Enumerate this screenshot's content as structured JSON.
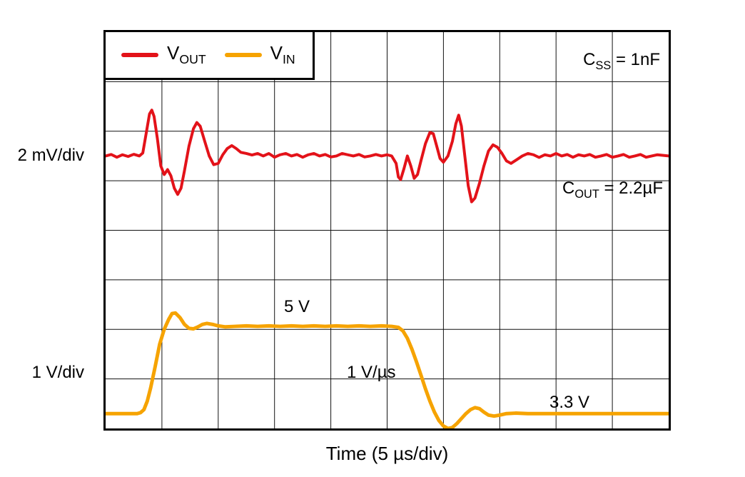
{
  "figure": {
    "y_axis_label_top": "2 mV/div",
    "y_axis_label_bottom": "1 V/div",
    "x_axis_label": "Time (5 µs/div)"
  },
  "legend": {
    "items": [
      {
        "id": "vout",
        "main": "V",
        "sub": "OUT"
      },
      {
        "id": "vin",
        "main": "V",
        "sub": "IN"
      }
    ]
  },
  "annotations": {
    "css": {
      "main": "C",
      "sub": "SS",
      "rest": " = 1nF"
    },
    "cout": {
      "main": "C",
      "sub": "OUT",
      "rest": " = 2.2µF"
    },
    "vin_high": "5 V",
    "slew_rate": "1 V/µs",
    "vin_low": "3.3 V"
  },
  "chart_data": {
    "type": "line",
    "title": "",
    "xlabel": "Time (5 µs/div)",
    "ylabel": "",
    "x_units": "µs",
    "xlim": [
      0,
      50
    ],
    "grid": {
      "x_divisions": 10,
      "y_divisions": 8,
      "line_color": "#111111",
      "line_width": 1
    },
    "legend_position": "top-left",
    "series": [
      {
        "id": "vin",
        "name": "V_IN",
        "units": "V",
        "units_per_div": 1,
        "scale_label": "1 V/div",
        "baseline_value": 3.3,
        "baseline_div": 0.3,
        "color": "#f6a300",
        "stroke_width": 5,
        "points": [
          [
            0,
            3.3
          ],
          [
            1.0,
            3.3
          ],
          [
            2.0,
            3.3
          ],
          [
            2.8,
            3.3
          ],
          [
            3.1,
            3.32
          ],
          [
            3.4,
            3.38
          ],
          [
            3.7,
            3.55
          ],
          [
            4.0,
            3.82
          ],
          [
            4.4,
            4.25
          ],
          [
            4.8,
            4.7
          ],
          [
            5.2,
            5.0
          ],
          [
            5.6,
            5.2
          ],
          [
            5.9,
            5.32
          ],
          [
            6.2,
            5.33
          ],
          [
            6.6,
            5.24
          ],
          [
            7.0,
            5.1
          ],
          [
            7.4,
            5.02
          ],
          [
            7.8,
            5.01
          ],
          [
            8.2,
            5.05
          ],
          [
            8.6,
            5.1
          ],
          [
            9.0,
            5.12
          ],
          [
            9.5,
            5.1
          ],
          [
            10.0,
            5.07
          ],
          [
            10.6,
            5.05
          ],
          [
            11.5,
            5.06
          ],
          [
            12.5,
            5.07
          ],
          [
            13.5,
            5.06
          ],
          [
            14.5,
            5.07
          ],
          [
            15.5,
            5.06
          ],
          [
            16.5,
            5.07
          ],
          [
            17.5,
            5.06
          ],
          [
            18.5,
            5.07
          ],
          [
            19.5,
            5.06
          ],
          [
            20.5,
            5.07
          ],
          [
            21.5,
            5.06
          ],
          [
            22.5,
            5.07
          ],
          [
            23.5,
            5.06
          ],
          [
            24.5,
            5.07
          ],
          [
            25.4,
            5.06
          ],
          [
            26.0,
            5.04
          ],
          [
            26.4,
            4.97
          ],
          [
            26.8,
            4.82
          ],
          [
            27.2,
            4.6
          ],
          [
            27.6,
            4.35
          ],
          [
            28.0,
            4.08
          ],
          [
            28.4,
            3.8
          ],
          [
            28.8,
            3.55
          ],
          [
            29.2,
            3.33
          ],
          [
            29.6,
            3.16
          ],
          [
            30.0,
            3.05
          ],
          [
            30.4,
            3.0
          ],
          [
            30.8,
            3.02
          ],
          [
            31.2,
            3.1
          ],
          [
            31.6,
            3.2
          ],
          [
            32.0,
            3.3
          ],
          [
            32.4,
            3.38
          ],
          [
            32.8,
            3.42
          ],
          [
            33.2,
            3.4
          ],
          [
            33.6,
            3.33
          ],
          [
            34.0,
            3.27
          ],
          [
            34.5,
            3.25
          ],
          [
            35.0,
            3.27
          ],
          [
            35.6,
            3.3
          ],
          [
            36.4,
            3.31
          ],
          [
            37.5,
            3.3
          ],
          [
            39.0,
            3.3
          ],
          [
            41.0,
            3.3
          ],
          [
            43.0,
            3.3
          ],
          [
            45.0,
            3.3
          ],
          [
            47.0,
            3.3
          ],
          [
            49.0,
            3.3
          ],
          [
            50,
            3.3
          ]
        ]
      },
      {
        "id": "vout",
        "name": "V_OUT",
        "units": "mV (AC-coupled deviation)",
        "units_per_div": 2,
        "scale_label": "2 mV/div",
        "baseline_value": 0,
        "baseline_div": 5.5,
        "color": "#e31219",
        "stroke_width": 4,
        "points": [
          [
            0,
            0.0
          ],
          [
            0.5,
            0.06
          ],
          [
            1.0,
            -0.05
          ],
          [
            1.5,
            0.05
          ],
          [
            2.0,
            -0.02
          ],
          [
            2.5,
            0.07
          ],
          [
            3.0,
            0.0
          ],
          [
            3.3,
            0.12
          ],
          [
            3.6,
            0.9
          ],
          [
            3.9,
            1.7
          ],
          [
            4.1,
            1.85
          ],
          [
            4.3,
            1.6
          ],
          [
            4.6,
            0.7
          ],
          [
            4.9,
            -0.4
          ],
          [
            5.2,
            -0.75
          ],
          [
            5.5,
            -0.55
          ],
          [
            5.8,
            -0.8
          ],
          [
            6.1,
            -1.3
          ],
          [
            6.4,
            -1.55
          ],
          [
            6.7,
            -1.3
          ],
          [
            7.0,
            -0.6
          ],
          [
            7.4,
            0.4
          ],
          [
            7.8,
            1.1
          ],
          [
            8.1,
            1.35
          ],
          [
            8.4,
            1.2
          ],
          [
            8.8,
            0.6
          ],
          [
            9.2,
            0.0
          ],
          [
            9.6,
            -0.35
          ],
          [
            10.0,
            -0.3
          ],
          [
            10.4,
            0.05
          ],
          [
            10.8,
            0.3
          ],
          [
            11.2,
            0.42
          ],
          [
            11.6,
            0.3
          ],
          [
            12.0,
            0.15
          ],
          [
            12.5,
            0.1
          ],
          [
            13.0,
            0.04
          ],
          [
            13.5,
            0.1
          ],
          [
            14.0,
            0.0
          ],
          [
            14.5,
            0.1
          ],
          [
            15.0,
            -0.05
          ],
          [
            15.5,
            0.05
          ],
          [
            16.0,
            0.1
          ],
          [
            16.5,
            0.0
          ],
          [
            17.0,
            0.06
          ],
          [
            17.5,
            -0.05
          ],
          [
            18.0,
            0.05
          ],
          [
            18.5,
            0.1
          ],
          [
            19.0,
            0.0
          ],
          [
            19.5,
            0.06
          ],
          [
            20.0,
            -0.04
          ],
          [
            20.5,
            0.0
          ],
          [
            21.0,
            0.1
          ],
          [
            21.5,
            0.05
          ],
          [
            22.0,
            0.0
          ],
          [
            22.5,
            0.06
          ],
          [
            23.0,
            -0.04
          ],
          [
            23.5,
            0.0
          ],
          [
            24.0,
            0.06
          ],
          [
            24.5,
            0.0
          ],
          [
            25.0,
            0.05
          ],
          [
            25.4,
            0.0
          ],
          [
            25.8,
            -0.3
          ],
          [
            26.0,
            -0.85
          ],
          [
            26.2,
            -0.95
          ],
          [
            26.5,
            -0.5
          ],
          [
            26.8,
            0.0
          ],
          [
            27.1,
            -0.4
          ],
          [
            27.4,
            -0.9
          ],
          [
            27.7,
            -0.75
          ],
          [
            28.0,
            -0.2
          ],
          [
            28.4,
            0.5
          ],
          [
            28.8,
            0.95
          ],
          [
            29.1,
            0.9
          ],
          [
            29.4,
            0.4
          ],
          [
            29.7,
            -0.1
          ],
          [
            30.0,
            -0.25
          ],
          [
            30.4,
            0.0
          ],
          [
            30.8,
            0.6
          ],
          [
            31.1,
            1.3
          ],
          [
            31.35,
            1.65
          ],
          [
            31.6,
            1.2
          ],
          [
            31.9,
            0.0
          ],
          [
            32.2,
            -1.2
          ],
          [
            32.5,
            -1.85
          ],
          [
            32.8,
            -1.7
          ],
          [
            33.2,
            -1.1
          ],
          [
            33.6,
            -0.4
          ],
          [
            34.0,
            0.2
          ],
          [
            34.4,
            0.45
          ],
          [
            34.8,
            0.35
          ],
          [
            35.2,
            0.1
          ],
          [
            35.6,
            -0.2
          ],
          [
            36.0,
            -0.3
          ],
          [
            36.5,
            -0.15
          ],
          [
            37.0,
            0.0
          ],
          [
            37.5,
            0.1
          ],
          [
            38.0,
            0.05
          ],
          [
            38.5,
            -0.06
          ],
          [
            39.0,
            0.05
          ],
          [
            39.5,
            0.0
          ],
          [
            40.0,
            0.1
          ],
          [
            40.5,
            0.0
          ],
          [
            41.0,
            0.06
          ],
          [
            41.5,
            -0.05
          ],
          [
            42.0,
            0.05
          ],
          [
            42.5,
            0.0
          ],
          [
            43.0,
            0.06
          ],
          [
            43.5,
            -0.05
          ],
          [
            44.0,
            0.0
          ],
          [
            44.5,
            0.06
          ],
          [
            45.0,
            -0.05
          ],
          [
            45.5,
            0.0
          ],
          [
            46.0,
            0.06
          ],
          [
            46.5,
            -0.05
          ],
          [
            47.0,
            0.0
          ],
          [
            47.5,
            0.06
          ],
          [
            48.0,
            -0.05
          ],
          [
            48.5,
            0.0
          ],
          [
            49.0,
            0.05
          ],
          [
            50,
            0.0
          ]
        ]
      }
    ]
  }
}
